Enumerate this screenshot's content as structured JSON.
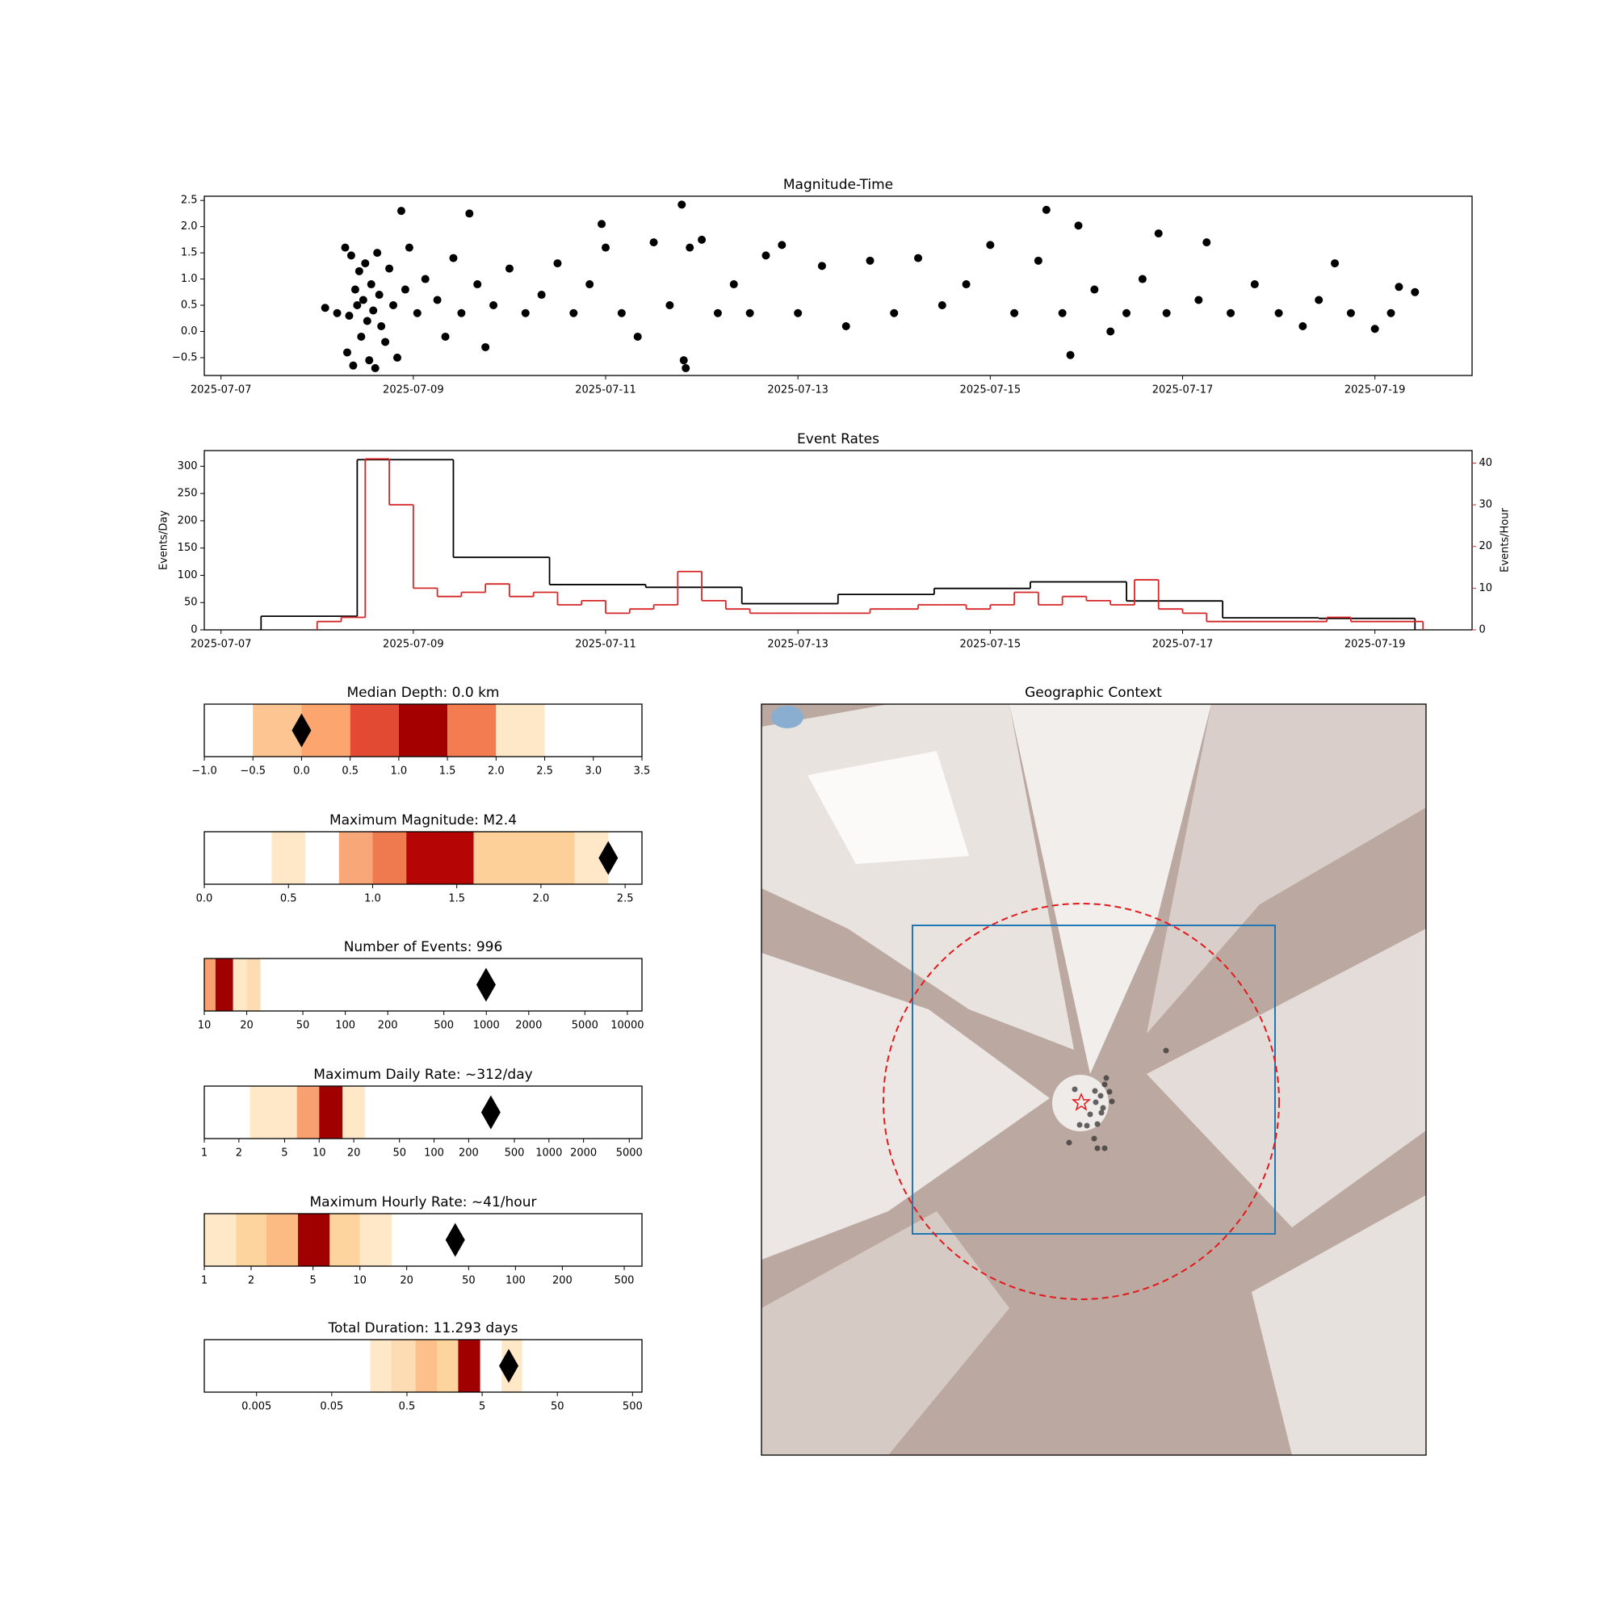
{
  "chart_data": [
    {
      "type": "scatter",
      "title": "Magnitude-Time",
      "color": "#000000",
      "xlim": [
        "2025-07-06T19:50",
        "2025-07-20T00:15"
      ],
      "xticks": [
        "2025-07-07",
        "2025-07-09",
        "2025-07-11",
        "2025-07-13",
        "2025-07-15",
        "2025-07-17",
        "2025-07-19"
      ],
      "ylim": [
        -0.84,
        2.58
      ],
      "yticks": [
        {
          "value": -0.5,
          "label": "−0.5"
        },
        {
          "value": 0,
          "label": "0.0"
        },
        0.5,
        {
          "value": 1,
          "label": "1.0"
        },
        1.5,
        {
          "value": 2,
          "label": "2.0"
        },
        2.5
      ],
      "x": [
        "2025-07-08T02:00",
        "2025-07-08T05:00",
        "2025-07-08T07:00",
        "2025-07-08T07:30",
        "2025-07-08T08:00",
        "2025-07-08T08:30",
        "2025-07-08T09:00",
        "2025-07-08T09:30",
        "2025-07-08T10:00",
        "2025-07-08T10:30",
        "2025-07-08T11:00",
        "2025-07-08T11:30",
        "2025-07-08T12:00",
        "2025-07-08T12:30",
        "2025-07-08T13:00",
        "2025-07-08T13:30",
        "2025-07-08T14:00",
        "2025-07-08T14:30",
        "2025-07-08T15:00",
        "2025-07-08T15:30",
        "2025-07-08T16:00",
        "2025-07-08T17:00",
        "2025-07-08T18:00",
        "2025-07-08T19:00",
        "2025-07-08T20:00",
        "2025-07-08T21:00",
        "2025-07-08T22:00",
        "2025-07-08T23:00",
        "2025-07-09T01:00",
        "2025-07-09T03:00",
        "2025-07-09T06:00",
        "2025-07-09T08:00",
        "2025-07-09T10:00",
        "2025-07-09T12:00",
        "2025-07-09T14:00",
        "2025-07-09T16:00",
        "2025-07-09T18:00",
        "2025-07-09T20:00",
        "2025-07-10T00:00",
        "2025-07-10T04:00",
        "2025-07-10T08:00",
        "2025-07-10T12:00",
        "2025-07-10T16:00",
        "2025-07-10T20:00",
        "2025-07-11T00:00",
        "2025-07-10T23:00",
        "2025-07-11T04:00",
        "2025-07-11T08:00",
        "2025-07-11T12:00",
        "2025-07-11T16:00",
        "2025-07-11T19:00",
        "2025-07-11T19:30",
        "2025-07-11T20:00",
        "2025-07-11T21:00",
        "2025-07-12T00:00",
        "2025-07-12T04:00",
        "2025-07-12T08:00",
        "2025-07-12T12:00",
        "2025-07-12T16:00",
        "2025-07-12T20:00",
        "2025-07-13T00:00",
        "2025-07-13T06:00",
        "2025-07-13T12:00",
        "2025-07-13T18:00",
        "2025-07-14T00:00",
        "2025-07-14T06:00",
        "2025-07-14T12:00",
        "2025-07-14T18:00",
        "2025-07-15T00:00",
        "2025-07-15T06:00",
        "2025-07-15T12:00",
        "2025-07-15T14:00",
        "2025-07-15T18:00",
        "2025-07-15T20:00",
        "2025-07-15T22:00",
        "2025-07-16T02:00",
        "2025-07-16T06:00",
        "2025-07-16T10:00",
        "2025-07-16T14:00",
        "2025-07-16T18:00",
        "2025-07-16T20:00",
        "2025-07-17T04:00",
        "2025-07-17T06:00",
        "2025-07-17T12:00",
        "2025-07-17T18:00",
        "2025-07-18T00:00",
        "2025-07-18T06:00",
        "2025-07-18T10:00",
        "2025-07-18T14:00",
        "2025-07-18T18:00",
        "2025-07-19T00:00",
        "2025-07-19T04:00",
        "2025-07-19T06:00",
        "2025-07-19T10:00"
      ],
      "values": [
        0.45,
        0.35,
        1.6,
        -0.4,
        0.3,
        1.45,
        -0.65,
        0.8,
        0.5,
        1.15,
        -0.1,
        0.6,
        1.3,
        0.2,
        -0.55,
        0.9,
        0.4,
        -0.7,
        1.5,
        0.7,
        0.1,
        -0.2,
        1.2,
        0.5,
        -0.5,
        2.3,
        0.8,
        1.6,
        0.35,
        1.0,
        0.6,
        -0.1,
        1.4,
        0.35,
        2.25,
        0.9,
        -0.3,
        0.5,
        1.2,
        0.35,
        0.7,
        1.3,
        0.35,
        0.9,
        1.6,
        2.05,
        0.35,
        -0.1,
        1.7,
        0.5,
        2.42,
        -0.55,
        -0.7,
        1.6,
        1.75,
        0.35,
        0.9,
        0.35,
        1.45,
        1.65,
        0.35,
        1.25,
        0.1,
        1.35,
        0.35,
        1.4,
        0.5,
        0.9,
        1.65,
        0.35,
        1.35,
        2.32,
        0.35,
        -0.45,
        2.02,
        0.8,
        0.0,
        0.35,
        1.0,
        1.87,
        0.35,
        0.6,
        1.7,
        0.35,
        0.9,
        0.35,
        0.1,
        0.6,
        1.3,
        0.35,
        0.05,
        0.35,
        0.85,
        0.75
      ]
    },
    {
      "type": "step",
      "title": "Event Rates",
      "ylabel": "Events/Day",
      "y2label": "Events/Hour",
      "y2color": "#d62728",
      "xlim": [
        "2025-07-06T19:50",
        "2025-07-20T00:15"
      ],
      "xticks": [
        "2025-07-07",
        "2025-07-09",
        "2025-07-11",
        "2025-07-13",
        "2025-07-15",
        "2025-07-17",
        "2025-07-19"
      ],
      "ylim": [
        0,
        328.7
      ],
      "yticks": [
        0,
        50,
        100,
        150,
        200,
        250,
        300
      ],
      "y2lim": [
        0,
        43
      ],
      "y2ticks": [
        0,
        10,
        20,
        30,
        40
      ],
      "series": [
        {
          "color": "#000000",
          "bins": [
            "2025-07-07T10:00",
            "2025-07-08T10:00",
            "2025-07-09T10:00",
            "2025-07-10T10:00",
            "2025-07-11T10:00",
            "2025-07-12T10:00",
            "2025-07-13T10:00",
            "2025-07-14T10:00",
            "2025-07-15T10:00",
            "2025-07-16T10:00",
            "2025-07-17T10:00",
            "2025-07-18T10:00",
            "2025-07-19T10:00"
          ],
          "values": [
            25,
            312,
            133,
            83,
            78,
            48,
            65,
            76,
            88,
            53,
            22,
            21
          ]
        },
        {
          "color": "#d62728",
          "axis": "y2",
          "bins": [
            "2025-07-08T00:00",
            "2025-07-08T06:00",
            "2025-07-08T12:00",
            "2025-07-08T18:00",
            "2025-07-09T00:00",
            "2025-07-09T06:00",
            "2025-07-09T12:00",
            "2025-07-09T18:00",
            "2025-07-10T00:00",
            "2025-07-10T06:00",
            "2025-07-10T12:00",
            "2025-07-10T18:00",
            "2025-07-11T00:00",
            "2025-07-11T06:00",
            "2025-07-11T12:00",
            "2025-07-11T18:00",
            "2025-07-12T00:00",
            "2025-07-12T06:00",
            "2025-07-12T12:00",
            "2025-07-12T18:00",
            "2025-07-13T00:00",
            "2025-07-13T06:00",
            "2025-07-13T12:00",
            "2025-07-13T18:00",
            "2025-07-14T00:00",
            "2025-07-14T06:00",
            "2025-07-14T12:00",
            "2025-07-14T18:00",
            "2025-07-15T00:00",
            "2025-07-15T06:00",
            "2025-07-15T12:00",
            "2025-07-15T18:00",
            "2025-07-16T00:00",
            "2025-07-16T06:00",
            "2025-07-16T12:00",
            "2025-07-16T18:00",
            "2025-07-17T00:00",
            "2025-07-17T06:00",
            "2025-07-17T12:00",
            "2025-07-17T18:00",
            "2025-07-18T00:00",
            "2025-07-18T06:00",
            "2025-07-18T12:00",
            "2025-07-18T18:00",
            "2025-07-19T00:00",
            "2025-07-19T06:00",
            "2025-07-19T12:00"
          ],
          "values": [
            2,
            3,
            41,
            30,
            10,
            8,
            9,
            11,
            8,
            9,
            6,
            7,
            4,
            5,
            6,
            14,
            7,
            5,
            4,
            4,
            4,
            4,
            4,
            5,
            5,
            6,
            6,
            5,
            6,
            9,
            6,
            8,
            7,
            6,
            12,
            5,
            4,
            2,
            2,
            2,
            2,
            2,
            3,
            2,
            2,
            2
          ]
        }
      ]
    },
    {
      "type": "gauge",
      "title": "Median Depth: 0.0 km",
      "log": false,
      "xlim": [
        -1,
        3.5
      ],
      "xticks": [
        {
          "value": -1,
          "label": "−1.0"
        },
        {
          "value": -0.5,
          "label": "−0.5"
        },
        {
          "value": 0,
          "label": "0.0"
        },
        0.5,
        {
          "value": 1,
          "label": "1.0"
        },
        1.5,
        {
          "value": 2,
          "label": "2.0"
        },
        2.5,
        {
          "value": 3,
          "label": "3.0"
        },
        3.5
      ],
      "bands": [
        {
          "start": -0.5,
          "end": 0,
          "color": "#fdc591"
        },
        {
          "start": 0,
          "end": 0.5,
          "color": "#fca56e"
        },
        {
          "start": 0.5,
          "end": 1,
          "color": "#e34a33"
        },
        {
          "start": 1,
          "end": 1.5,
          "color": "#a50000"
        },
        {
          "start": 1.5,
          "end": 2,
          "color": "#f37c50"
        },
        {
          "start": 2,
          "end": 2.5,
          "color": "#fee8c8"
        }
      ],
      "value": 0
    },
    {
      "type": "gauge",
      "title": "Maximum Magnitude: M2.4",
      "log": false,
      "xlim": [
        0,
        2.6
      ],
      "xticks": [
        {
          "value": 0,
          "label": "0.0"
        },
        0.5,
        {
          "value": 1,
          "label": "1.0"
        },
        1.5,
        {
          "value": 2,
          "label": "2.0"
        },
        2.5
      ],
      "bands": [
        {
          "start": 0.4,
          "end": 0.6,
          "color": "#fee8c8"
        },
        {
          "start": 0.8,
          "end": 1,
          "color": "#f8a878"
        },
        {
          "start": 1,
          "end": 1.2,
          "color": "#f07a50"
        },
        {
          "start": 1.2,
          "end": 1.6,
          "color": "#b50505"
        },
        {
          "start": 1.6,
          "end": 2.2,
          "color": "#fdd09a"
        },
        {
          "start": 2.2,
          "end": 2.4,
          "color": "#fee8c8"
        }
      ],
      "value": 2.4
    },
    {
      "type": "gauge",
      "title": "Number of Events: 996",
      "log": true,
      "xlim": [
        10,
        12700
      ],
      "xticks": [
        10,
        20,
        50,
        100,
        200,
        500,
        1000,
        2000,
        5000,
        10000
      ],
      "bands": [
        {
          "start": 10,
          "end": 12,
          "color": "#f8a070"
        },
        {
          "start": 12,
          "end": 16,
          "color": "#a00000"
        },
        {
          "start": 16,
          "end": 20,
          "color": "#fee8c8"
        },
        {
          "start": 20,
          "end": 25,
          "color": "#fddcb4"
        }
      ],
      "value": 996
    },
    {
      "type": "gauge",
      "title": "Maximum Daily Rate: ~312/day",
      "log": true,
      "xlim": [
        1,
        6450
      ],
      "xticks": [
        1,
        2,
        5,
        10,
        20,
        50,
        100,
        200,
        500,
        1000,
        2000,
        5000
      ],
      "bands": [
        {
          "start": 2.5,
          "end": 6.4,
          "color": "#fee8c8"
        },
        {
          "start": 6.4,
          "end": 10,
          "color": "#f8a070"
        },
        {
          "start": 10,
          "end": 16,
          "color": "#a00000"
        },
        {
          "start": 16,
          "end": 25,
          "color": "#fee8c8"
        }
      ],
      "value": 312
    },
    {
      "type": "gauge",
      "title": "Maximum Hourly Rate: ~41/hour",
      "log": true,
      "xlim": [
        1,
        650
      ],
      "xticks": [
        1,
        2,
        5,
        10,
        20,
        50,
        100,
        200,
        500
      ],
      "bands": [
        {
          "start": 1,
          "end": 1.6,
          "color": "#fee8c8"
        },
        {
          "start": 1.6,
          "end": 2.5,
          "color": "#fdd49e"
        },
        {
          "start": 2.5,
          "end": 4,
          "color": "#fdbb84"
        },
        {
          "start": 4,
          "end": 6.4,
          "color": "#a00000"
        },
        {
          "start": 6.4,
          "end": 10,
          "color": "#fdd49e"
        },
        {
          "start": 10,
          "end": 16,
          "color": "#fee8c8"
        }
      ],
      "value": 41
    },
    {
      "type": "gauge",
      "title": "Total Duration: 11.293 days",
      "log": true,
      "xlim": [
        0.00101,
        667
      ],
      "xticks": [
        0.005,
        0.05,
        0.5,
        5,
        50,
        500
      ],
      "bands": [
        {
          "start": 0.163,
          "end": 0.31,
          "color": "#fee8c8"
        },
        {
          "start": 0.31,
          "end": 0.65,
          "color": "#fddcb4"
        },
        {
          "start": 0.65,
          "end": 1.25,
          "color": "#fdc08a"
        },
        {
          "start": 1.25,
          "end": 2.4,
          "color": "#fdd49e"
        },
        {
          "start": 2.4,
          "end": 4.7,
          "color": "#a00000"
        },
        {
          "start": 9.1,
          "end": 17,
          "color": "#fee8c8"
        }
      ],
      "value": 11.293
    },
    {
      "type": "map",
      "title": "Geographic Context"
    }
  ]
}
